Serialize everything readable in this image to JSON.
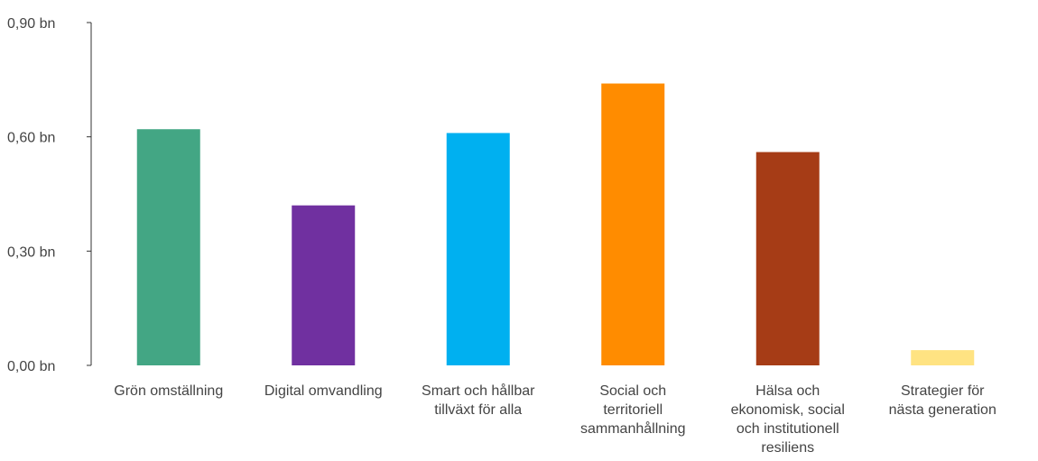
{
  "chart_data": {
    "type": "bar",
    "categories": [
      "Grön omställning",
      "Digital omvandling",
      "Smart och hållbar tillväxt för alla",
      "Social och territoriell sammanhållning",
      "Hälsa och ekonomisk, social och institutionell resiliens",
      "Strategier för nästa generation"
    ],
    "category_lines": [
      [
        "Grön omställning"
      ],
      [
        "Digital omvandling"
      ],
      [
        "Smart och hållbar",
        "tillväxt för alla"
      ],
      [
        "Social och",
        "territoriell",
        "sammanhållning"
      ],
      [
        "Hälsa och",
        "ekonomisk, social",
        "och institutionell",
        "resiliens"
      ],
      [
        "Strategier för",
        "nästa generation"
      ]
    ],
    "values": [
      0.62,
      0.42,
      0.61,
      0.74,
      0.56,
      0.04
    ],
    "colors": [
      "#43A684",
      "#7030A0",
      "#00B0F0",
      "#FF8C00",
      "#A63C16",
      "#FFE382"
    ],
    "yticks": [
      0.0,
      0.3,
      0.6,
      0.9
    ],
    "ytick_labels": [
      "0,00 bn",
      "0,30 bn",
      "0,60 bn",
      "0,90 bn"
    ],
    "ylim": [
      0,
      0.9
    ],
    "title": "",
    "xlabel": "",
    "ylabel": "",
    "grid": false,
    "legend": "none"
  }
}
